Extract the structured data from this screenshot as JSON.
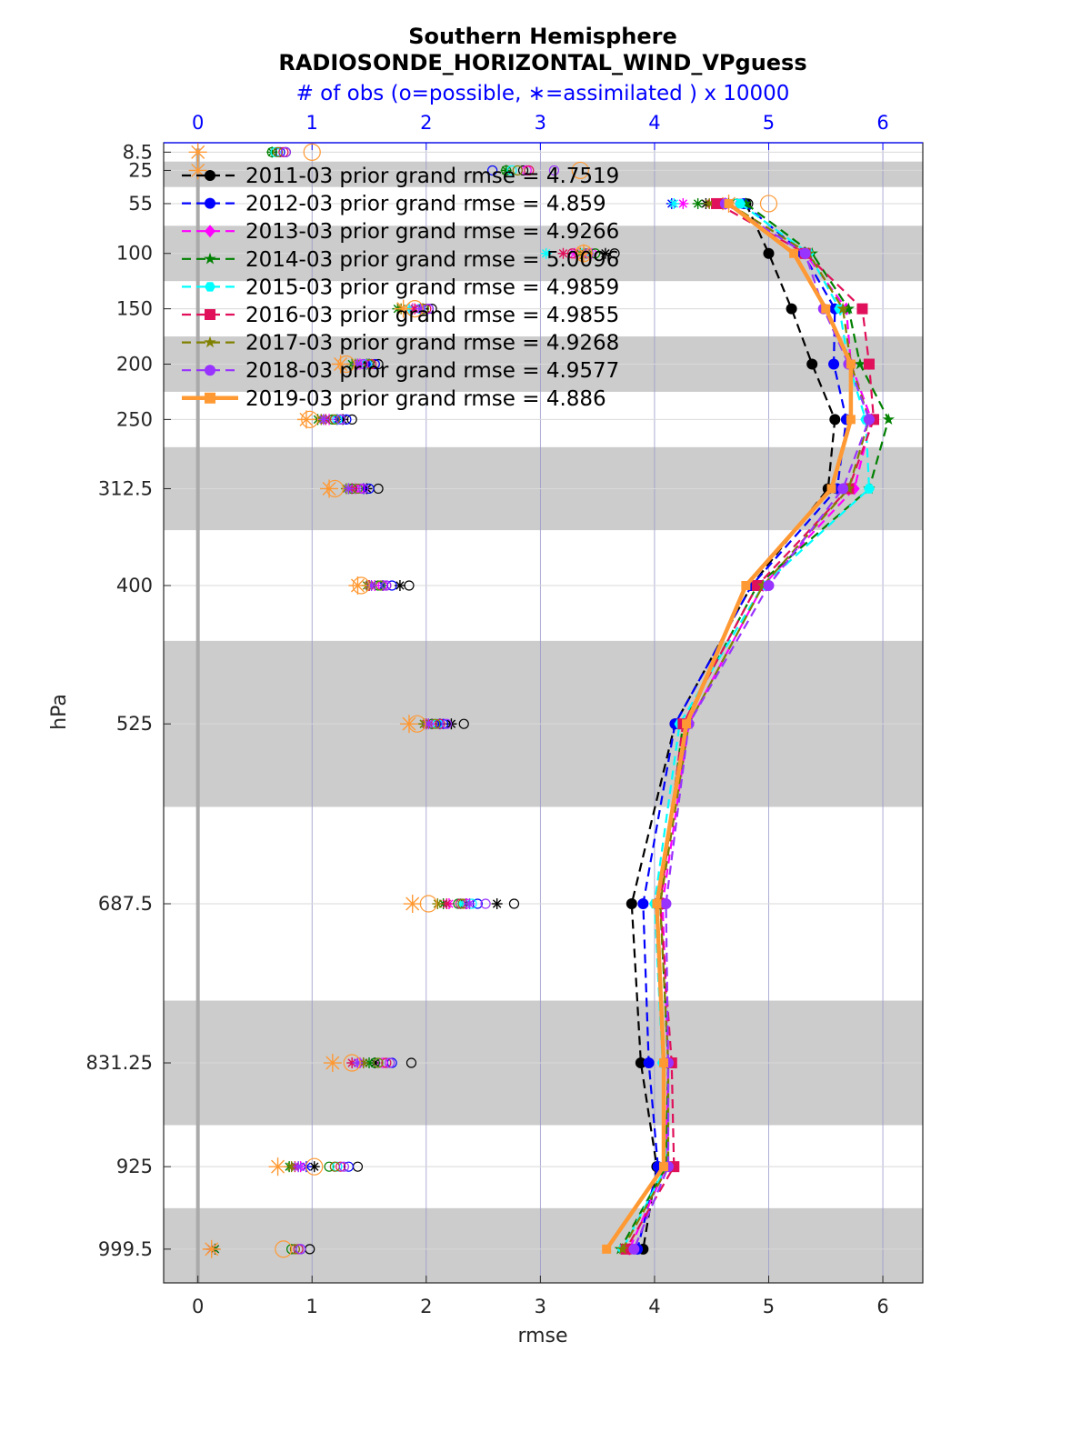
{
  "chart_data": {
    "type": "line",
    "title": "Southern Hemisphere",
    "subtitle": "RADIOSONDE_HORIZONTAL_WIND_VPguess",
    "top_axis_label": "# of obs (o=possible, ∗=assimilated ) x 10000",
    "xlabel": "rmse",
    "ylabel": "hPa",
    "xlim": [
      -0.3,
      6.35
    ],
    "top_xlim": [
      -0.3,
      6.35
    ],
    "x_ticks": [
      "0",
      "1",
      "2",
      "3",
      "4",
      "5",
      "6"
    ],
    "top_ticks": [
      "0",
      "1",
      "2",
      "3",
      "4",
      "5",
      "6"
    ],
    "levels": [
      "8.5",
      "25",
      "55",
      "100",
      "150",
      "200",
      "250",
      "312.5",
      "400",
      "525",
      "687.5",
      "831.25",
      "925",
      "999.5"
    ],
    "level_values": [
      8.5,
      25,
      55,
      100,
      150,
      200,
      250,
      312.5,
      400,
      525,
      687.5,
      831.25,
      925,
      999.5
    ],
    "ylim": [
      0,
      1030
    ],
    "shaded_bands": [
      [
        17,
        40
      ],
      [
        75,
        125
      ],
      [
        175,
        225
      ],
      [
        275,
        350
      ],
      [
        450,
        600
      ],
      [
        775,
        887.5
      ],
      [
        962.5,
        1030
      ]
    ],
    "series": [
      {
        "name": "2011-03",
        "label": "2011-03 prior grand rmse = 4.7519",
        "color": "#000000",
        "marker": "circle",
        "dash": true,
        "rmse": [
          null,
          null,
          4.8,
          5.0,
          5.2,
          5.38,
          5.58,
          5.52,
          4.85,
          4.18,
          3.8,
          3.88,
          4.02,
          3.9
        ],
        "possible": [
          0.77,
          2.85,
          4.82,
          3.65,
          2.05,
          1.58,
          1.35,
          1.58,
          1.85,
          2.33,
          2.77,
          1.87,
          1.4,
          0.98
        ],
        "assimilated": [
          null,
          null,
          4.45,
          3.57,
          1.97,
          1.48,
          1.27,
          1.48,
          1.77,
          2.22,
          2.62,
          1.55,
          1.02,
          null
        ]
      },
      {
        "name": "2012-03",
        "label": "2012-03 prior grand rmse = 4.859",
        "color": "#0000ff",
        "marker": "circle",
        "dash": true,
        "rmse": [
          null,
          null,
          4.78,
          5.3,
          5.58,
          5.57,
          5.68,
          5.6,
          4.85,
          4.18,
          3.9,
          3.95,
          4.03,
          3.85
        ],
        "possible": [
          0.72,
          2.58,
          4.7,
          3.42,
          2.02,
          1.55,
          1.3,
          1.5,
          1.7,
          2.15,
          2.45,
          1.7,
          1.32,
          0.9
        ],
        "assimilated": [
          null,
          null,
          4.15,
          3.38,
          1.95,
          1.5,
          1.22,
          1.45,
          1.62,
          2.12,
          2.35,
          1.45,
          0.95,
          null
        ]
      },
      {
        "name": "2013-03",
        "label": "2013-03 prior grand rmse = 4.9266",
        "color": "#ff00ff",
        "marker": "diamond",
        "dash": true,
        "rmse": [
          null,
          null,
          4.62,
          5.32,
          5.68,
          5.72,
          5.9,
          5.75,
          4.95,
          4.3,
          4.07,
          4.12,
          4.1,
          3.78
        ],
        "possible": [
          0.7,
          2.88,
          4.75,
          3.45,
          1.95,
          1.48,
          1.2,
          1.42,
          1.62,
          2.1,
          2.35,
          1.62,
          1.2,
          0.85
        ],
        "assimilated": [
          null,
          null,
          4.25,
          3.3,
          1.88,
          1.42,
          1.15,
          1.38,
          1.55,
          2.05,
          2.2,
          1.42,
          0.9,
          0.15
        ]
      },
      {
        "name": "2014-03",
        "label": "2014-03 prior grand rmse = 5.0096",
        "color": "#008000",
        "marker": "star",
        "dash": true,
        "rmse": [
          null,
          null,
          4.8,
          5.38,
          5.7,
          5.8,
          6.05,
          5.88,
          4.9,
          4.25,
          4.05,
          4.12,
          4.1,
          3.7
        ],
        "possible": [
          0.65,
          2.7,
          4.72,
          3.48,
          1.98,
          1.5,
          1.18,
          1.35,
          1.58,
          2.05,
          2.28,
          1.55,
          1.15,
          0.82
        ],
        "assimilated": [
          0.65,
          2.7,
          4.38,
          3.35,
          1.75,
          1.35,
          1.05,
          1.32,
          1.5,
          1.98,
          2.15,
          1.5,
          0.8,
          0.15
        ]
      },
      {
        "name": "2015-03",
        "label": "2015-03 prior grand rmse = 4.9859",
        "color": "#00ffff",
        "marker": "hexagon",
        "dash": true,
        "rmse": [
          null,
          null,
          4.75,
          5.35,
          5.62,
          5.7,
          5.85,
          5.88,
          4.95,
          4.22,
          4.0,
          4.07,
          4.1,
          3.72
        ],
        "possible": [
          0.68,
          2.75,
          4.7,
          3.38,
          1.95,
          1.48,
          1.22,
          1.4,
          1.6,
          2.1,
          2.4,
          1.58,
          1.22,
          0.88
        ],
        "assimilated": [
          null,
          null,
          4.17,
          3.05,
          1.85,
          1.38,
          1.12,
          1.3,
          1.48,
          2.0,
          2.3,
          1.4,
          0.88,
          0.12
        ]
      },
      {
        "name": "2016-03",
        "label": "2016-03 prior grand rmse = 4.9855",
        "color": "#e0105a",
        "marker": "square",
        "dash": true,
        "rmse": [
          null,
          null,
          4.55,
          5.32,
          5.82,
          5.88,
          5.92,
          5.7,
          4.9,
          4.25,
          4.05,
          4.15,
          4.17,
          3.75
        ],
        "possible": [
          0.75,
          2.9,
          4.78,
          3.28,
          2.0,
          1.52,
          1.25,
          1.45,
          1.65,
          2.12,
          2.3,
          1.65,
          1.25,
          0.88
        ],
        "assimilated": [
          null,
          null,
          4.5,
          3.2,
          1.9,
          1.4,
          1.12,
          1.35,
          1.5,
          2.0,
          2.18,
          1.35,
          0.85,
          0.12
        ]
      },
      {
        "name": "2017-03",
        "label": "2017-03 prior grand rmse = 4.9268",
        "color": "#808000",
        "marker": "star",
        "dash": true,
        "rmse": [
          null,
          null,
          4.65,
          5.35,
          5.65,
          5.72,
          5.88,
          5.7,
          4.95,
          4.3,
          4.05,
          4.12,
          4.12,
          3.72
        ],
        "possible": [
          0.7,
          2.8,
          4.78,
          3.4,
          1.98,
          1.5,
          1.2,
          1.4,
          1.6,
          2.08,
          2.32,
          1.58,
          1.2,
          0.85
        ],
        "assimilated": [
          null,
          null,
          4.48,
          3.35,
          1.78,
          1.38,
          1.08,
          1.3,
          1.48,
          1.98,
          2.1,
          1.45,
          0.82,
          0.12
        ]
      },
      {
        "name": "2018-03",
        "label": "2018-03 prior grand rmse = 4.9577",
        "color": "#9933ff",
        "marker": "circle",
        "dash": true,
        "rmse": [
          null,
          null,
          4.62,
          5.32,
          5.48,
          5.7,
          5.88,
          5.65,
          5.0,
          4.3,
          4.1,
          4.12,
          4.12,
          3.82
        ],
        "possible": [
          0.77,
          3.12,
          4.8,
          3.42,
          2.02,
          1.45,
          1.25,
          1.45,
          1.65,
          2.18,
          2.52,
          1.68,
          1.28,
          0.9
        ],
        "assimilated": [
          null,
          null,
          4.58,
          3.38,
          1.95,
          1.4,
          1.1,
          1.32,
          1.52,
          2.02,
          2.38,
          1.4,
          0.88,
          0.12
        ]
      },
      {
        "name": "2019-03",
        "label": "2019-03 prior grand rmse = 4.886",
        "color": "#ff9933",
        "marker": "square",
        "dash": false,
        "rmse": [
          null,
          null,
          4.65,
          5.22,
          5.5,
          5.72,
          5.72,
          5.55,
          4.8,
          4.28,
          4.02,
          4.08,
          4.08,
          3.58
        ],
        "possible": [
          1.0,
          3.35,
          5.0,
          3.38,
          1.9,
          1.3,
          0.98,
          1.2,
          1.43,
          1.92,
          2.02,
          1.35,
          1.02,
          0.75
        ],
        "assimilated": [
          0.0,
          0.0,
          4.65,
          3.38,
          1.8,
          1.25,
          0.95,
          1.15,
          1.4,
          1.85,
          1.88,
          1.18,
          0.7,
          0.12
        ]
      }
    ]
  }
}
